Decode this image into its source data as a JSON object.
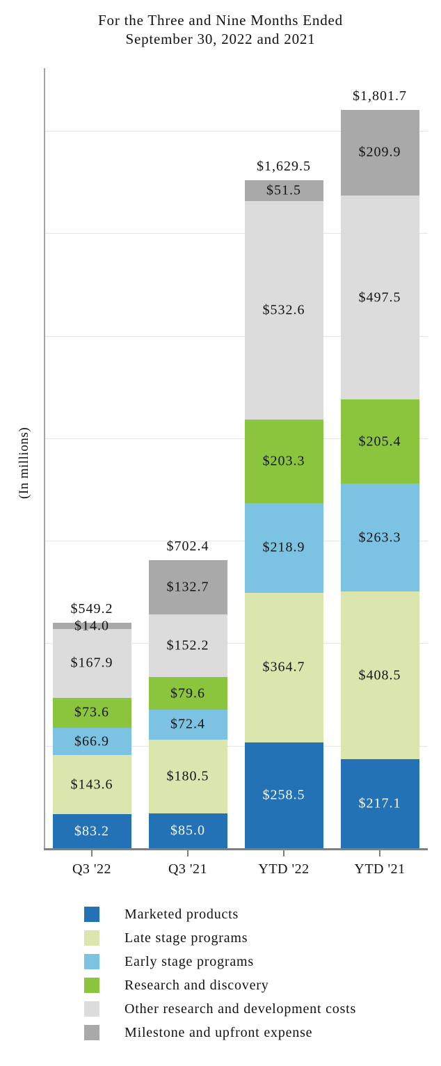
{
  "chart_data": {
    "type": "bar",
    "stacked": true,
    "title_line1": "For the Three and Nine Months Ended",
    "title_line2": "September 30, 2022 and 2021",
    "ylabel": "(In millions)",
    "categories": [
      "Q3 '22",
      "Q3 '21",
      "YTD '22",
      "YTD '21"
    ],
    "series": [
      {
        "name": "Marketed products",
        "color": "#2272b5",
        "label_color": "#fcfcfc",
        "values": [
          83.2,
          85.0,
          258.5,
          217.1
        ],
        "labels": [
          "$83.2",
          "$85.0",
          "$258.5",
          "$217.1"
        ]
      },
      {
        "name": "Late stage programs",
        "color": "#dbe5ae",
        "label_color": "#141414",
        "values": [
          143.6,
          180.5,
          364.7,
          408.5
        ],
        "labels": [
          "$143.6",
          "$180.5",
          "$364.7",
          "$408.5"
        ]
      },
      {
        "name": "Early stage programs",
        "color": "#7cc2e3",
        "label_color": "#141414",
        "values": [
          66.9,
          72.4,
          218.9,
          263.3
        ],
        "labels": [
          "$66.9",
          "$72.4",
          "$218.9",
          "$263.3"
        ]
      },
      {
        "name": "Research and discovery",
        "color": "#8bc53e",
        "label_color": "#141414",
        "values": [
          73.6,
          79.6,
          203.3,
          205.4
        ],
        "labels": [
          "$73.6",
          "$79.6",
          "$203.3",
          "$205.4"
        ]
      },
      {
        "name": "Other research and development costs",
        "color": "#dcdcdc",
        "label_color": "#141414",
        "values": [
          167.9,
          152.2,
          532.6,
          497.5
        ],
        "labels": [
          "$167.9",
          "$152.2",
          "$532.6",
          "$497.5"
        ]
      },
      {
        "name": "Milestone and upfront expense",
        "color": "#a9a9a9",
        "label_color": "#141414",
        "values": [
          14.0,
          132.7,
          51.5,
          209.9
        ],
        "labels": [
          "$14.0",
          "$132.7",
          "$51.5",
          "$209.9"
        ]
      }
    ],
    "totals": [
      549.2,
      702.4,
      1629.5,
      1801.7
    ],
    "total_labels": [
      "$549.2",
      "$702.4",
      "$1,629.5",
      "$1,801.7"
    ],
    "ylim": [
      0,
      1903
    ],
    "gridline_interval": 250,
    "grid": true,
    "legend_position": "bottom",
    "colors": {
      "grid": "#e4e4e4",
      "y_axis": "#a3a3a3",
      "x_axis": "#7f7f7f"
    }
  }
}
